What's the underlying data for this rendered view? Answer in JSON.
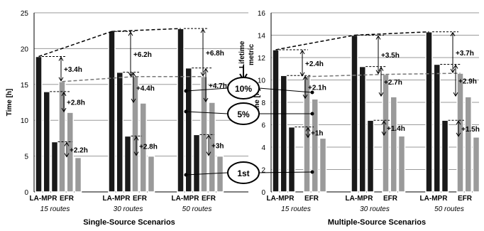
{
  "chart_data": [
    {
      "type": "bar",
      "title": "Single-Source Scenarios",
      "ylabel": "Time [h]",
      "ylim": [
        0,
        25
      ],
      "yticks": [
        0,
        5,
        10,
        15,
        20,
        25
      ],
      "grid": true,
      "groups": [
        "15 routes",
        "30 routes",
        "50 routes"
      ],
      "categories": [
        "LA-MPR",
        "EFR"
      ],
      "lifetime_metrics": [
        "1st",
        "5%",
        "10%"
      ],
      "series": [
        {
          "group": "15 routes",
          "method": "LA-MPR",
          "values": {
            "10%": 18.9,
            "5%": 14.0,
            "1st": 7.0
          }
        },
        {
          "group": "15 routes",
          "method": "EFR",
          "values": {
            "10%": 15.4,
            "5%": 11.1,
            "1st": 4.8
          }
        },
        {
          "group": "30 routes",
          "method": "LA-MPR",
          "values": {
            "10%": 22.4,
            "5%": 16.7,
            "1st": 7.8
          }
        },
        {
          "group": "30 routes",
          "method": "EFR",
          "values": {
            "10%": 16.1,
            "5%": 12.4,
            "1st": 5.0
          }
        },
        {
          "group": "50 routes",
          "method": "LA-MPR",
          "values": {
            "10%": 22.8,
            "5%": 17.3,
            "1st": 8.0
          }
        },
        {
          "group": "50 routes",
          "method": "EFR",
          "values": {
            "10%": 16.1,
            "5%": 12.5,
            "1st": 5.0
          }
        }
      ],
      "differences": [
        {
          "group": "15 routes",
          "metric": "10%",
          "label": "+3.4h"
        },
        {
          "group": "15 routes",
          "metric": "5%",
          "label": "+2.8h"
        },
        {
          "group": "15 routes",
          "metric": "1st",
          "label": "+2.2h"
        },
        {
          "group": "30 routes",
          "metric": "10%",
          "label": "+6.2h"
        },
        {
          "group": "30 routes",
          "metric": "5%",
          "label": "+4.4h"
        },
        {
          "group": "30 routes",
          "metric": "1st",
          "label": "+2.8h"
        },
        {
          "group": "50 routes",
          "metric": "10%",
          "label": "+6.8h"
        },
        {
          "group": "50 routes",
          "metric": "5%",
          "label": "+4.7h"
        },
        {
          "group": "50 routes",
          "metric": "1st",
          "label": "+3h"
        }
      ]
    },
    {
      "type": "bar",
      "title": "Multiple-Source Scenarios",
      "ylabel": "Time [h]",
      "ylim": [
        0,
        16
      ],
      "yticks": [
        0,
        2,
        4,
        6,
        8,
        10,
        12,
        14,
        16
      ],
      "grid": true,
      "groups": [
        "15 routes",
        "30 routes",
        "50 routes"
      ],
      "categories": [
        "LA-MPR",
        "EFR"
      ],
      "lifetime_metrics": [
        "1st",
        "5%",
        "10%"
      ],
      "series": [
        {
          "group": "15 routes",
          "method": "LA-MPR",
          "values": {
            "10%": 12.7,
            "5%": 10.4,
            "1st": 5.8
          }
        },
        {
          "group": "15 routes",
          "method": "EFR",
          "values": {
            "10%": 10.3,
            "5%": 8.3,
            "1st": 4.8
          }
        },
        {
          "group": "30 routes",
          "method": "LA-MPR",
          "values": {
            "10%": 14.0,
            "5%": 11.2,
            "1st": 6.4
          }
        },
        {
          "group": "30 routes",
          "method": "EFR",
          "values": {
            "10%": 10.5,
            "5%": 8.5,
            "1st": 5.0
          }
        },
        {
          "group": "50 routes",
          "method": "LA-MPR",
          "values": {
            "10%": 14.3,
            "5%": 11.4,
            "1st": 6.4
          }
        },
        {
          "group": "50 routes",
          "method": "EFR",
          "values": {
            "10%": 10.6,
            "5%": 8.5,
            "1st": 4.9
          }
        }
      ],
      "differences": [
        {
          "group": "15 routes",
          "metric": "10%",
          "label": "+2.4h"
        },
        {
          "group": "15 routes",
          "metric": "5%",
          "label": "+2.1h"
        },
        {
          "group": "15 routes",
          "metric": "1st",
          "label": "+1h"
        },
        {
          "group": "30 routes",
          "metric": "10%",
          "label": "+3.5h"
        },
        {
          "group": "30 routes",
          "metric": "5%",
          "label": "+2.7h"
        },
        {
          "group": "30 routes",
          "metric": "1st",
          "label": "+1.4h"
        },
        {
          "group": "50 routes",
          "metric": "10%",
          "label": "+3.7h"
        },
        {
          "group": "50 routes",
          "metric": "5%",
          "label": "+2.9h"
        },
        {
          "group": "50 routes",
          "metric": "1st",
          "label": "+1.5h"
        }
      ]
    }
  ],
  "legend": {
    "title_line1": "Lifetime",
    "title_line2": "metric",
    "items": [
      "10%",
      "5%",
      "1st"
    ]
  },
  "colors": {
    "la_mpr": "#1a1a1a",
    "efr": "#9a9a9a",
    "grid": "#9a9a9a"
  }
}
